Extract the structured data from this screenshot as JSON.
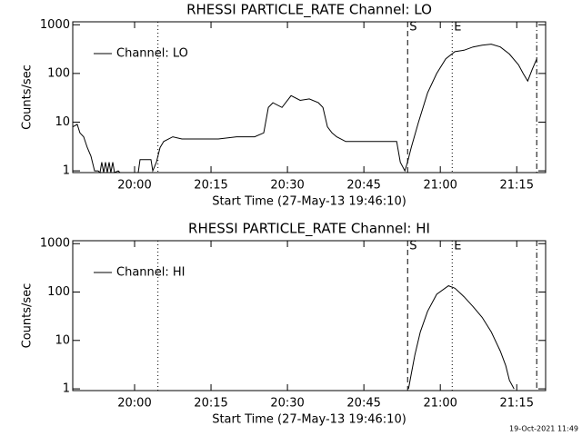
{
  "chart_data": [
    {
      "type": "line",
      "title": "RHESSI PARTICLE_RATE Channel: LO",
      "xlabel": "Start Time (27-May-13 19:46:10)",
      "ylabel": "Counts/sec",
      "log_y": true,
      "legend": "upper left",
      "xlim": [
        "19:47:52",
        "21:20:40"
      ],
      "xticks": [
        "20:00",
        "20:15",
        "20:30",
        "20:45",
        "21:00",
        "21:15"
      ],
      "ylim": [
        0.92,
        1150
      ],
      "yticks": [
        1,
        10,
        100,
        1000
      ],
      "vlines": [
        {
          "x": "20:04:35",
          "style": "dotted"
        },
        {
          "x": "20:53:35",
          "style": "dashed",
          "label": "S"
        },
        {
          "x": "21:02:20",
          "style": "dotted",
          "label": "E"
        },
        {
          "x": "21:18:55",
          "style": "dashdot"
        }
      ],
      "series": [
        {
          "name": "Channel: LO",
          "color": "#000000",
          "x": [
            "19:47:52",
            "19:48:45",
            "19:49:17",
            "19:50:00",
            "19:50:43",
            "19:51:26",
            "19:52:09",
            "19:52:51",
            "19:53:13",
            "19:53:34",
            "19:53:56",
            "19:54:17",
            "19:54:39",
            "19:55:00",
            "19:55:21",
            "19:55:43",
            "19:56:04",
            "19:56:47",
            "19:57:09",
            "20:00:43",
            "20:01:04",
            "20:03:13",
            "20:03:34",
            "20:04:17",
            "20:05:00",
            "20:05:43",
            "20:07:30",
            "20:09:17",
            "20:12:51",
            "20:16:26",
            "20:20:00",
            "20:23:34",
            "20:25:21",
            "20:26:15",
            "20:27:09",
            "20:28:56",
            "20:30:43",
            "20:32:30",
            "20:34:17",
            "20:36:04",
            "20:36:58",
            "20:37:51",
            "20:38:45",
            "20:39:39",
            "20:41:26",
            "20:45:00",
            "20:48:34",
            "20:51:26",
            "20:52:09",
            "20:53:02",
            "20:53:34",
            "20:54:17",
            "20:55:43",
            "20:57:30",
            "20:59:17",
            "21:01:04",
            "21:02:51",
            "21:04:39",
            "21:06:26",
            "21:08:13",
            "21:10:00",
            "21:11:47",
            "21:13:34",
            "21:15:21",
            "21:16:15",
            "21:17:09",
            "21:18:02",
            "21:18:56"
          ],
          "values": [
            8,
            9,
            6,
            5,
            3,
            2,
            1,
            1,
            0.92,
            1.5,
            0.92,
            1.5,
            0.92,
            1.5,
            0.92,
            1.5,
            0.92,
            1,
            0.92,
            0.92,
            1.7,
            1.7,
            1,
            1.5,
            3,
            4,
            5,
            4.5,
            4.5,
            4.5,
            5,
            5,
            6,
            20,
            25,
            20,
            35,
            28,
            30,
            25,
            20,
            8,
            6,
            5,
            4,
            4,
            4,
            4,
            1.5,
            1,
            1.5,
            3,
            10,
            40,
            100,
            200,
            280,
            300,
            350,
            380,
            400,
            350,
            250,
            150,
            100,
            70,
            120,
            200
          ]
        }
      ]
    },
    {
      "type": "line",
      "title": "RHESSI PARTICLE_RATE Channel: HI",
      "xlabel": "Start Time (27-May-13 19:46:10)",
      "ylabel": "Counts/sec",
      "log_y": true,
      "legend": "upper left",
      "xlim": [
        "19:47:52",
        "21:20:40"
      ],
      "xticks": [
        "20:00",
        "20:15",
        "20:30",
        "20:45",
        "21:00",
        "21:15"
      ],
      "ylim": [
        0.92,
        1150
      ],
      "yticks": [
        1,
        10,
        100,
        1000
      ],
      "vlines": [
        {
          "x": "20:04:35",
          "style": "dotted"
        },
        {
          "x": "20:53:35",
          "style": "dashed",
          "label": "S"
        },
        {
          "x": "21:02:20",
          "style": "dotted",
          "label": "E"
        },
        {
          "x": "21:18:55",
          "style": "dashdot"
        }
      ],
      "series": [
        {
          "name": "Channel: HI",
          "color": "#000000",
          "x": [
            "20:53:45",
            "20:54:17",
            "20:55:00",
            "20:56:04",
            "20:57:30",
            "20:59:17",
            "21:01:36",
            "21:02:51",
            "21:04:39",
            "21:06:26",
            "21:08:13",
            "21:10:00",
            "21:11:47",
            "21:12:51",
            "21:13:34",
            "21:14:28"
          ],
          "values": [
            1,
            2,
            5,
            15,
            40,
            90,
            135,
            120,
            80,
            50,
            30,
            15,
            6,
            3,
            1.5,
            1
          ]
        }
      ]
    }
  ],
  "footer": "19-Oct-2021 11:49"
}
